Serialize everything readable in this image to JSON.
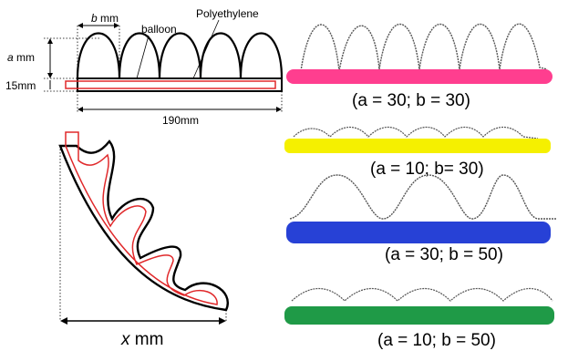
{
  "schematic": {
    "b_label": "b",
    "b_unit": "mm",
    "balloon_label": "balloon",
    "polyethylene_label": "Polyethylene",
    "a_label": "a",
    "a_unit": "mm",
    "thickness_label": "15mm",
    "length_label": "190mm"
  },
  "bent": {
    "x_label": "x",
    "x_unit": "mm"
  },
  "samples": [
    {
      "caption": "(a = 30; b = 30)",
      "color": "#ff3e8f"
    },
    {
      "caption": "(a = 10; b= 30)",
      "color": "#f5f000"
    },
    {
      "caption": "(a = 30; b = 50)",
      "color": "#2741d6"
    },
    {
      "caption": "(a = 10; b = 50)",
      "color": "#1f9a47"
    }
  ],
  "colors": {
    "outline": "#000000",
    "inner_line": "#e0282a",
    "trace": "#555555"
  }
}
